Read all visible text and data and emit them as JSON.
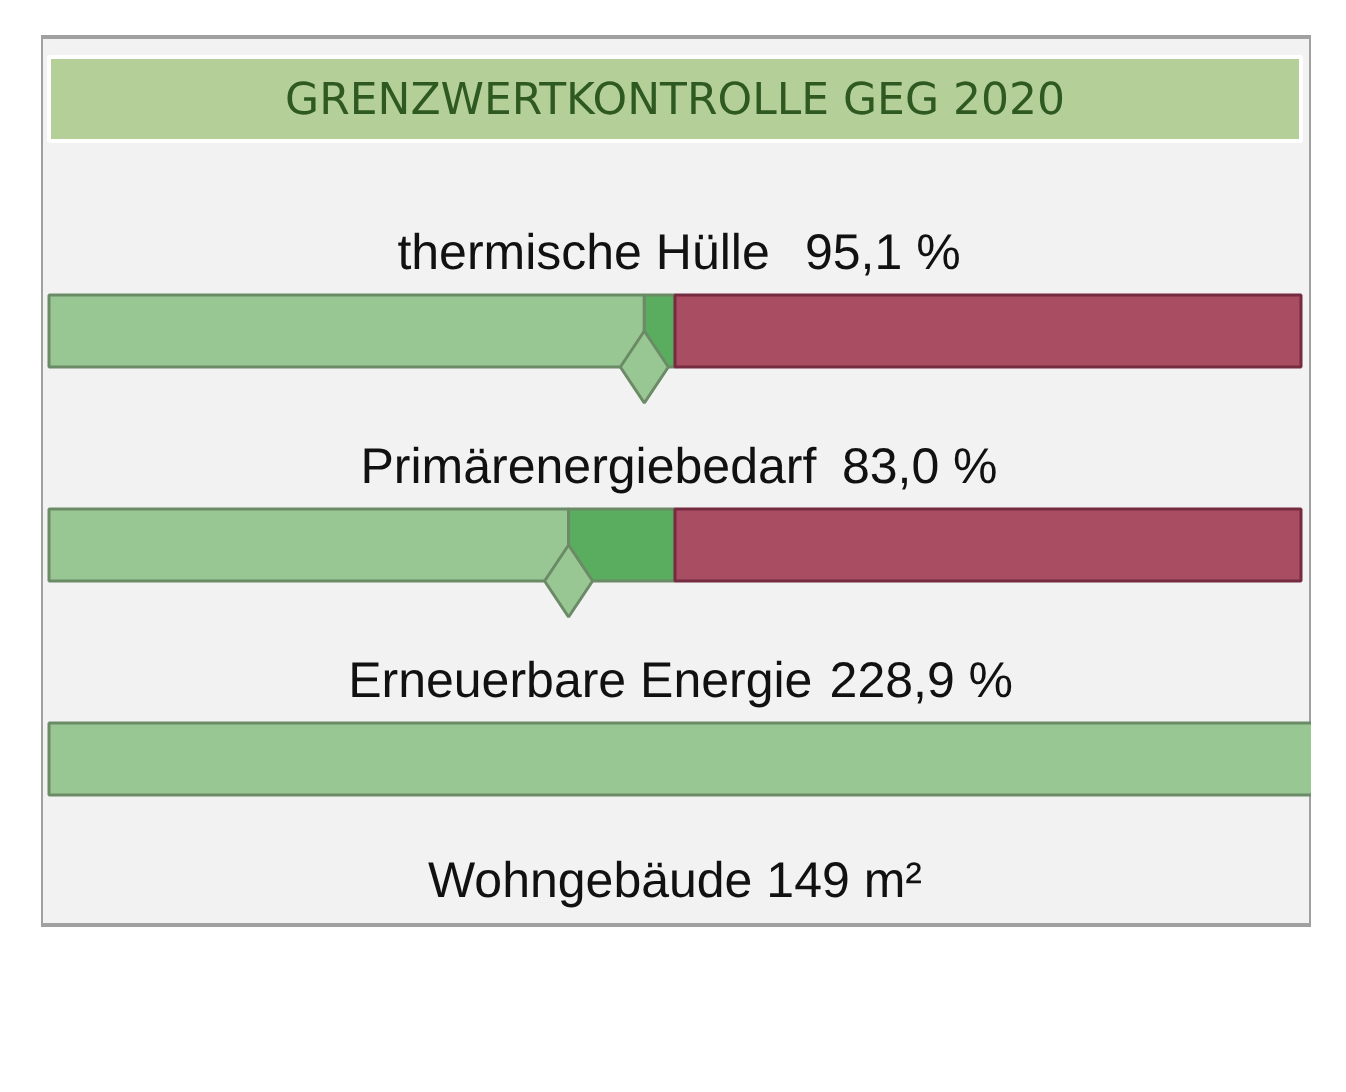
{
  "chart_data": {
    "type": "other",
    "title": "GRENZWERTKONTROLLE GEG 2020",
    "categories": [
      "thermische Hülle",
      "Primärenergiebedarf",
      "Erneuerbare Energie"
    ],
    "values": [
      95.1,
      83.0,
      228.9
    ],
    "value_labels": [
      "95,1 %",
      "83,0 %",
      "228,9 %"
    ],
    "colors": [
      "#99c794",
      "#99c794",
      "#99c794"
    ],
    "annotations": [
      "Wohngebäude 149 m²"
    ]
  }
}
